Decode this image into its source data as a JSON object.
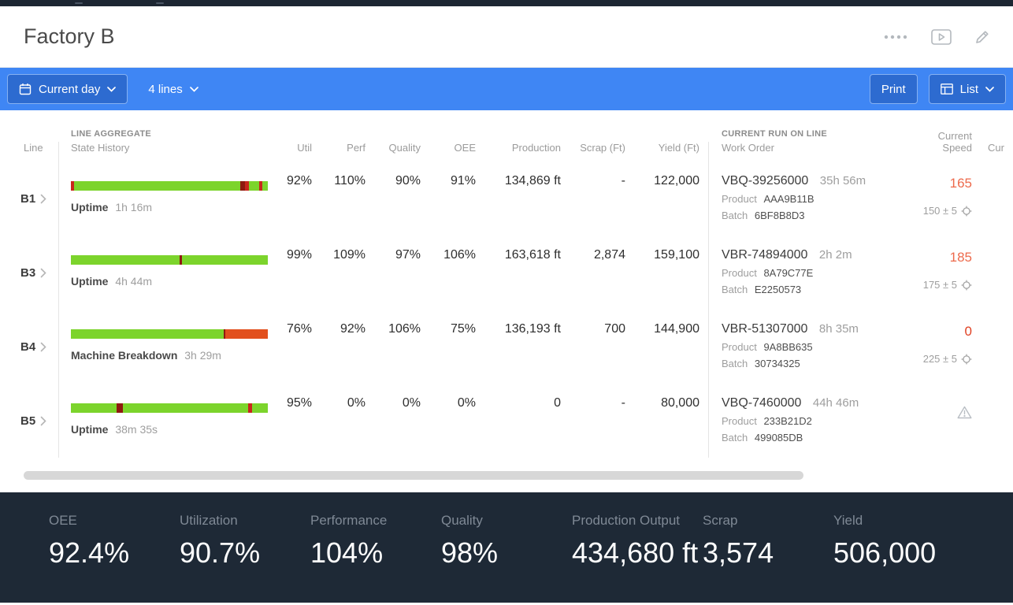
{
  "header": {
    "title": "Factory B"
  },
  "toolbar": {
    "period": "Current day",
    "lines": "4 lines",
    "print": "Print",
    "view": "List"
  },
  "table": {
    "headers": {
      "line": "Line",
      "aggregate_group": "LINE AGGREGATE",
      "state_history": "State History",
      "util": "Util",
      "perf": "Perf",
      "quality": "Quality",
      "oee": "OEE",
      "production": "Production",
      "scrap": "Scrap (Ft)",
      "yield": "Yield (Ft)",
      "run_group": "CURRENT RUN ON LINE",
      "work_order": "Work Order",
      "current_speed": "Current Speed",
      "overflow_col": "Cur"
    },
    "labels": {
      "product": "Product",
      "batch": "Batch"
    },
    "rows": [
      {
        "line": "B1",
        "state": "Uptime",
        "state_duration": "1h 16m",
        "util": "92%",
        "perf": "110%",
        "quality": "90%",
        "oee": "91%",
        "production": "134,869 ft",
        "scrap": "-",
        "yield": "122,000",
        "work_order": "VBQ-39256000",
        "run_time": "35h 56m",
        "product": "AAA9B11B",
        "batch": "6BF8B8D3",
        "speed": "165",
        "speed_color": "#ed6a4c",
        "target": "150 ± 5",
        "warning": false,
        "bar": [
          [
            "r",
            1.6
          ],
          [
            "g",
            84.4
          ],
          [
            "d",
            2.4
          ],
          [
            "r",
            2.0
          ],
          [
            "g",
            5.2
          ],
          [
            "r",
            1.6
          ],
          [
            "g",
            2.8
          ]
        ]
      },
      {
        "line": "B3",
        "state": "Uptime",
        "state_duration": "4h 44m",
        "util": "99%",
        "perf": "109%",
        "quality": "97%",
        "oee": "106%",
        "production": "163,618 ft",
        "scrap": "2,874",
        "yield": "159,100",
        "work_order": "VBR-74894000",
        "run_time": "2h 2m",
        "product": "8A79C77E",
        "batch": "E2250573",
        "speed": "185",
        "speed_color": "#ed6a4c",
        "target": "175 ± 5",
        "warning": false,
        "bar": [
          [
            "g",
            55.0
          ],
          [
            "d",
            1.4
          ],
          [
            "g",
            43.6
          ]
        ]
      },
      {
        "line": "B4",
        "state": "Machine Breakdown",
        "state_duration": "3h 29m",
        "util": "76%",
        "perf": "92%",
        "quality": "106%",
        "oee": "75%",
        "production": "136,193 ft",
        "scrap": "700",
        "yield": "144,900",
        "work_order": "VBR-51307000",
        "run_time": "8h 35m",
        "product": "9A8BB635",
        "batch": "30734325",
        "speed": "0",
        "speed_color": "#e04123",
        "target": "225 ± 5",
        "warning": false,
        "bar": [
          [
            "g",
            77.5
          ],
          [
            "d",
            1.0
          ],
          [
            "o",
            21.5
          ]
        ]
      },
      {
        "line": "B5",
        "state": "Uptime",
        "state_duration": "38m 35s",
        "util": "95%",
        "perf": "0%",
        "quality": "0%",
        "oee": "0%",
        "production": "0",
        "scrap": "-",
        "yield": "80,000",
        "work_order": "VBQ-7460000",
        "run_time": "44h 46m",
        "product": "233B21D2",
        "batch": "499085DB",
        "speed": "",
        "speed_color": "",
        "target": "",
        "warning": true,
        "bar": [
          [
            "g",
            23.0
          ],
          [
            "d",
            3.2
          ],
          [
            "g",
            63.8
          ],
          [
            "r",
            1.8
          ],
          [
            "g",
            8.2
          ]
        ]
      }
    ]
  },
  "footer": {
    "stats": [
      {
        "label": "OEE",
        "value": "92.4%"
      },
      {
        "label": "Utilization",
        "value": "90.7%"
      },
      {
        "label": "Performance",
        "value": "104%"
      },
      {
        "label": "Quality",
        "value": "98%"
      },
      {
        "label": "Production Output",
        "value": "434,680 ft"
      },
      {
        "label": "Scrap",
        "value": "3,574"
      },
      {
        "label": "Yield",
        "value": "506,000"
      }
    ]
  },
  "colors": {
    "accent_blue": "#3f86f4",
    "button_blue": "#2d6bd0",
    "footer_bg": "#1e2936",
    "bar": {
      "g": "#7cd42c",
      "r": "#c8271c",
      "d": "#8e1a10",
      "o": "#e2501e"
    }
  },
  "icons": {
    "calendar-icon": "calendar",
    "chevron-down-icon": "chevron-down",
    "chevron-right-icon": "chevron-right",
    "more-menu-icon": "four-dots",
    "slideshow-icon": "play-rectangle",
    "edit-pencil-icon": "pencil",
    "list-icon": "table-grid",
    "speed-settings-icon": "gear",
    "warning-icon": "warning-triangle"
  }
}
